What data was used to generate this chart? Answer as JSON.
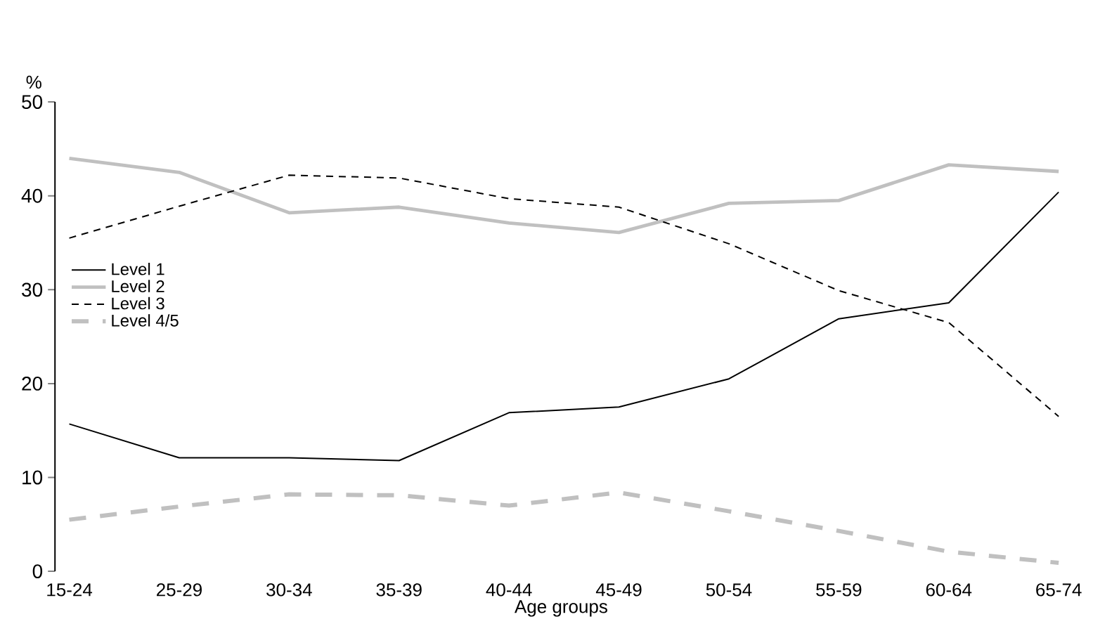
{
  "chart_data": {
    "type": "line",
    "xlabel": "Age groups",
    "ylabel": "%",
    "categories": [
      "15-24",
      "25-29",
      "30-34",
      "35-39",
      "40-44",
      "45-49",
      "50-54",
      "55-59",
      "60-64",
      "65-74"
    ],
    "ylim": [
      0,
      50
    ],
    "yticks": [
      0,
      10,
      20,
      30,
      40,
      50
    ],
    "grid": false,
    "legend": "left",
    "marker": "none",
    "series": [
      {
        "name": "Level 1",
        "color": "#000000",
        "line_style": "solid",
        "values": [
          15.7,
          12.1,
          12.1,
          11.8,
          16.9,
          17.5,
          20.5,
          26.9,
          28.6,
          40.4
        ]
      },
      {
        "name": "Level 2",
        "color": "#c0c0c0",
        "line_style": "solid",
        "values": [
          44.0,
          42.5,
          38.2,
          38.8,
          37.1,
          36.1,
          39.2,
          39.5,
          43.3,
          42.6
        ]
      },
      {
        "name": "Level 3",
        "color": "#000000",
        "line_style": "dashed",
        "values": [
          35.5,
          38.9,
          42.2,
          41.9,
          39.7,
          38.8,
          34.9,
          29.9,
          26.5,
          16.5
        ]
      },
      {
        "name": "Level 4/5",
        "color": "#c0c0c0",
        "line_style": "dashed",
        "values": [
          5.5,
          6.9,
          8.2,
          8.1,
          7.0,
          8.4,
          6.4,
          4.3,
          2.1,
          0.9
        ]
      }
    ]
  }
}
